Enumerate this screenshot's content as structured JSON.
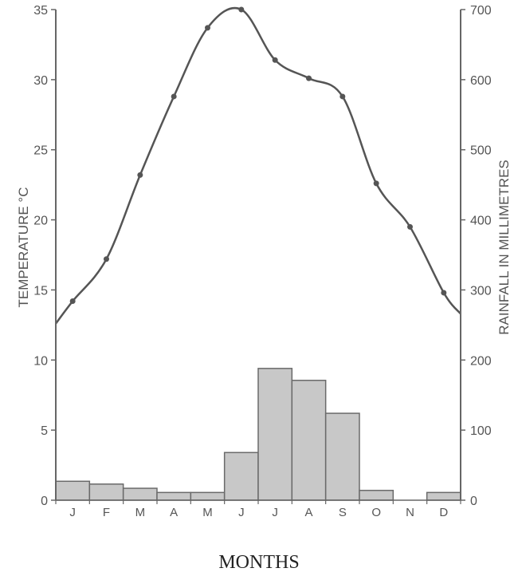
{
  "chart_data": {
    "type": "bar",
    "title": "",
    "xlabel": "MONTHS",
    "ylabel_left": "TEMPERATURE °C",
    "ylabel_right": "RAINFALL IN MILLIMETRES",
    "categories": [
      "J",
      "F",
      "M",
      "A",
      "M",
      "J",
      "J",
      "A",
      "S",
      "O",
      "N",
      "D"
    ],
    "ylim_left": [
      0,
      35
    ],
    "yticks_left": [
      0,
      5,
      10,
      15,
      20,
      25,
      30,
      35
    ],
    "ylim_right": [
      0,
      700
    ],
    "yticks_right": [
      0,
      100,
      200,
      300,
      400,
      500,
      600,
      700
    ],
    "series": [
      {
        "name": "Rainfall",
        "kind": "bar",
        "axis": "right",
        "values": [
          27,
          23,
          17,
          11,
          11,
          68,
          188,
          171,
          124,
          14,
          0,
          11
        ]
      },
      {
        "name": "Temperature",
        "kind": "line",
        "axis": "left",
        "values": [
          14.2,
          17.2,
          23.2,
          28.8,
          33.7,
          35.0,
          31.4,
          30.1,
          28.8,
          22.6,
          19.5,
          14.8
        ],
        "start_value": 12.6,
        "end_value": 13.3
      }
    ],
    "grid": false,
    "colors": {
      "bar_fill": "#c8c8c8",
      "bar_stroke": "#6a6a6a",
      "line": "#555555",
      "marker": "#555555",
      "axis": "#666666"
    }
  }
}
